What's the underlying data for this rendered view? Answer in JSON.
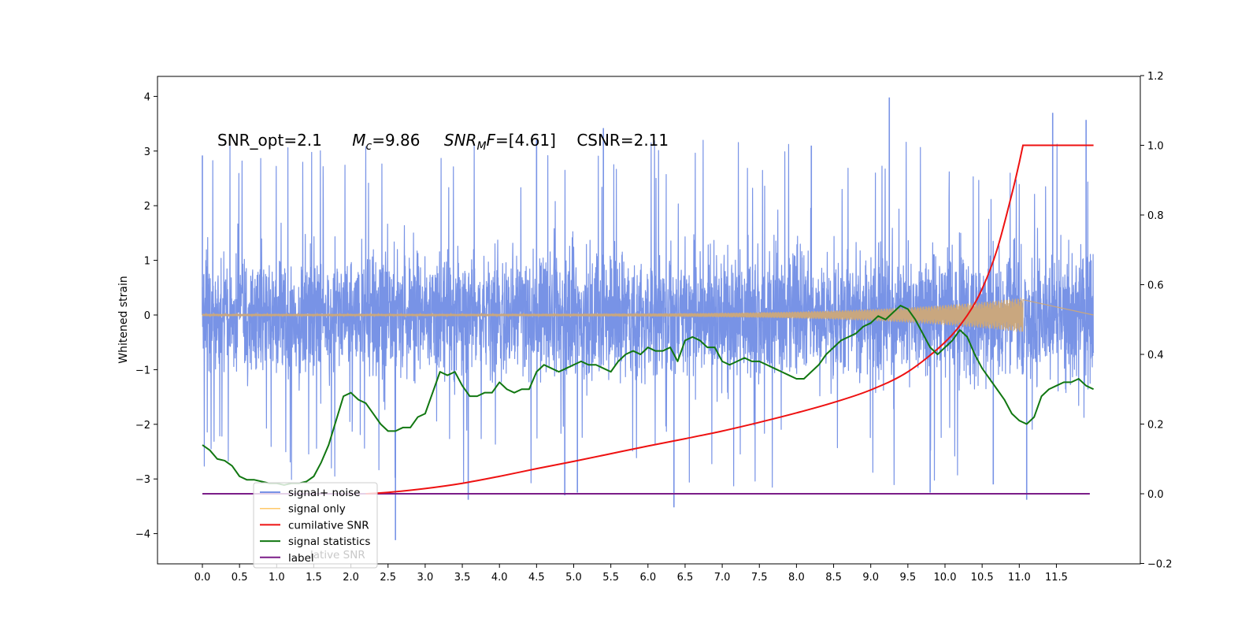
{
  "chart_data": {
    "type": "line",
    "title": "",
    "xlabel": "",
    "ylabel": "Whitened strain",
    "xlim": [
      -0.6,
      12.5
    ],
    "ylim": [
      -4.5,
      4.35
    ],
    "y2lim": [
      -0.2,
      1.2
    ],
    "x_ticks": [
      0.0,
      0.5,
      1.0,
      1.5,
      2.0,
      2.5,
      3.0,
      3.5,
      4.0,
      4.5,
      5.0,
      5.5,
      6.0,
      6.5,
      7.0,
      7.5,
      8.0,
      8.5,
      9.0,
      9.5,
      10.0,
      10.5,
      11.0,
      11.5
    ],
    "x_tick_labels": [
      "0.0",
      "0.5",
      "1.0",
      "1.5",
      "2.0",
      "2.5",
      "3.0",
      "3.5",
      "4.0",
      "4.5",
      "5.0",
      "5.5",
      "6.0",
      "6.5",
      "7.0",
      "7.5",
      "8.0",
      "8.5",
      "9.0",
      "9.5",
      "10.0",
      "10.5",
      "11.0",
      "11.5"
    ],
    "y_ticks": [
      -4,
      -3,
      -2,
      -1,
      0,
      1,
      2,
      3,
      4
    ],
    "y_tick_labels": [
      "−4",
      "−3",
      "−2",
      "−1",
      "0",
      "1",
      "2",
      "3",
      "4"
    ],
    "y2_ticks": [
      -0.2,
      0.0,
      0.2,
      0.4,
      0.6,
      0.8,
      1.0,
      1.2
    ],
    "y2_tick_labels": [
      "−0.2",
      "0.0",
      "0.2",
      "0.4",
      "0.6",
      "0.8",
      "1.0",
      "1.2"
    ],
    "grid": false,
    "legend_position": "lower-left",
    "annotations": {
      "snr_opt": "SNR_opt=2.1",
      "mc_symbol": "M",
      "mc_sub": "c",
      "mc_value": "=9.86",
      "snrmf_symbol": "SNR",
      "snrmf_sub": "M",
      "snrmf_f": "F",
      "snrmf_value": "=[4.61]",
      "csnr": "CSNR=2.11"
    },
    "series": [
      {
        "name": "signal+ noise",
        "color": "#7893e6",
        "axis": "left",
        "x_range": [
          0.0,
          12.0
        ],
        "band_upper": 1.6,
        "band_lower": -1.7,
        "peak_max": 3.98,
        "peak_min": -4.12,
        "spikes": [
          {
            "x": 0.0,
            "y": 2.92
          },
          {
            "x": 2.6,
            "y": -4.12
          },
          {
            "x": 3.58,
            "y": -3.38
          },
          {
            "x": 4.88,
            "y": -3.3
          },
          {
            "x": 5.05,
            "y": -3.25
          },
          {
            "x": 5.4,
            "y": 3.42
          },
          {
            "x": 6.35,
            "y": -3.52
          },
          {
            "x": 9.25,
            "y": 3.98
          },
          {
            "x": 9.8,
            "y": -3.25
          },
          {
            "x": 10.65,
            "y": -3.1
          },
          {
            "x": 11.1,
            "y": -3.38
          },
          {
            "x": 11.45,
            "y": 3.7
          },
          {
            "x": 11.9,
            "y": 3.57
          },
          {
            "x": 4.5,
            "y": 3.2
          },
          {
            "x": 8.2,
            "y": 3.1
          }
        ]
      },
      {
        "name": "signal only",
        "color": "#ffc868",
        "axis": "left",
        "x_range": [
          0.0,
          11.05
        ],
        "envelope_start": 0.02,
        "envelope_peak": 0.32
      },
      {
        "name": "cumilative SNR",
        "color": "#ee1111",
        "axis": "right",
        "x": [
          2.2,
          2.5,
          3.0,
          3.5,
          4.0,
          4.5,
          5.0,
          5.5,
          6.0,
          6.5,
          7.0,
          7.5,
          8.0,
          8.5,
          9.0,
          9.5,
          10.0,
          10.3,
          10.5,
          10.7,
          10.9,
          11.0,
          11.05,
          11.5,
          12.0
        ],
        "values": [
          0.0,
          0.004,
          0.015,
          0.03,
          0.05,
          0.072,
          0.093,
          0.115,
          0.137,
          0.158,
          0.18,
          0.205,
          0.232,
          0.262,
          0.298,
          0.35,
          0.435,
          0.512,
          0.588,
          0.7,
          0.86,
          0.95,
          1.0,
          1.0,
          1.0
        ]
      },
      {
        "name": "signal statistics",
        "color": "#117711",
        "axis": "right",
        "x": [
          0.0,
          0.1,
          0.2,
          0.3,
          0.4,
          0.5,
          0.6,
          0.7,
          0.8,
          0.9,
          1.0,
          1.1,
          1.2,
          1.3,
          1.4,
          1.5,
          1.6,
          1.7,
          1.8,
          1.9,
          2.0,
          2.1,
          2.2,
          2.3,
          2.4,
          2.5,
          2.6,
          2.7,
          2.8,
          2.9,
          3.0,
          3.1,
          3.2,
          3.3,
          3.4,
          3.5,
          3.6,
          3.7,
          3.8,
          3.9,
          4.0,
          4.1,
          4.2,
          4.3,
          4.4,
          4.5,
          4.6,
          4.7,
          4.8,
          4.9,
          5.0,
          5.1,
          5.2,
          5.3,
          5.4,
          5.5,
          5.6,
          5.7,
          5.8,
          5.9,
          6.0,
          6.1,
          6.2,
          6.3,
          6.4,
          6.5,
          6.6,
          6.7,
          6.8,
          6.9,
          7.0,
          7.1,
          7.2,
          7.3,
          7.4,
          7.5,
          7.6,
          7.7,
          7.8,
          7.9,
          8.0,
          8.1,
          8.2,
          8.3,
          8.4,
          8.5,
          8.6,
          8.7,
          8.8,
          8.9,
          9.0,
          9.1,
          9.2,
          9.3,
          9.4,
          9.5,
          9.6,
          9.7,
          9.8,
          9.9,
          10.0,
          10.1,
          10.2,
          10.3,
          10.4,
          10.5,
          10.6,
          10.7,
          10.8,
          10.9,
          11.0,
          11.1,
          11.2,
          11.3,
          11.4,
          11.5,
          11.6,
          11.7,
          11.8,
          11.9,
          12.0
        ],
        "values": [
          0.14,
          0.125,
          0.1,
          0.095,
          0.08,
          0.05,
          0.04,
          0.04,
          0.035,
          0.03,
          0.03,
          0.025,
          0.03,
          0.03,
          0.035,
          0.05,
          0.09,
          0.14,
          0.21,
          0.28,
          0.29,
          0.27,
          0.26,
          0.23,
          0.2,
          0.18,
          0.18,
          0.19,
          0.19,
          0.22,
          0.23,
          0.29,
          0.35,
          0.34,
          0.35,
          0.31,
          0.28,
          0.28,
          0.29,
          0.29,
          0.32,
          0.3,
          0.29,
          0.3,
          0.3,
          0.35,
          0.37,
          0.36,
          0.35,
          0.36,
          0.37,
          0.38,
          0.37,
          0.37,
          0.36,
          0.35,
          0.38,
          0.4,
          0.41,
          0.4,
          0.42,
          0.41,
          0.41,
          0.42,
          0.38,
          0.44,
          0.45,
          0.44,
          0.42,
          0.42,
          0.38,
          0.37,
          0.38,
          0.39,
          0.38,
          0.38,
          0.37,
          0.36,
          0.35,
          0.34,
          0.33,
          0.33,
          0.35,
          0.37,
          0.4,
          0.42,
          0.44,
          0.45,
          0.46,
          0.48,
          0.49,
          0.51,
          0.5,
          0.52,
          0.54,
          0.53,
          0.5,
          0.46,
          0.42,
          0.4,
          0.42,
          0.44,
          0.47,
          0.45,
          0.4,
          0.36,
          0.33,
          0.3,
          0.27,
          0.23,
          0.21,
          0.2,
          0.22,
          0.28,
          0.3,
          0.31,
          0.32,
          0.32,
          0.33,
          0.31,
          0.3
        ]
      },
      {
        "name": "label",
        "color": "#7b1d88",
        "axis": "right",
        "x": [
          0.0,
          11.95
        ],
        "values": [
          0.0,
          0.0
        ]
      }
    ],
    "legend_overlapped_text": "lative SNR"
  }
}
